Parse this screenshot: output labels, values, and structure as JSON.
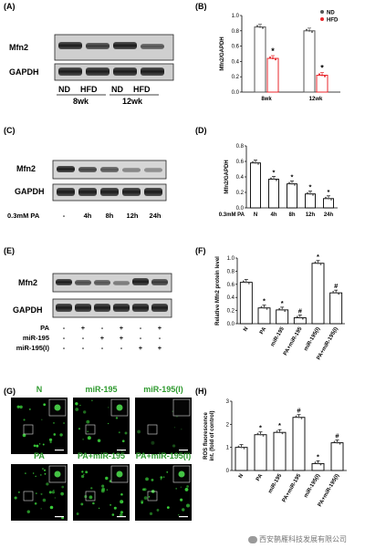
{
  "panels": {
    "A": {
      "letter": "(A)",
      "blot_labels": [
        "Mfn2",
        "GAPDH"
      ],
      "lane_labels": [
        "ND",
        "HFD",
        "ND",
        "HFD"
      ],
      "time_labels": [
        "8wk",
        "12wk"
      ]
    },
    "C": {
      "letter": "(C)",
      "blot_labels": [
        "Mfn2",
        "GAPDH"
      ],
      "treatment": "0.3mM PA",
      "lane_labels": [
        "-",
        "4h",
        "8h",
        "12h",
        "24h"
      ]
    },
    "E": {
      "letter": "(E)",
      "blot_labels": [
        "Mfn2",
        "GAPDH"
      ],
      "rows": [
        {
          "label": "PA",
          "signs": [
            "-",
            "+",
            "-",
            "+",
            "-",
            "+"
          ]
        },
        {
          "label": "miR-195",
          "signs": [
            "-",
            "-",
            "+",
            "+",
            "-",
            "-"
          ]
        },
        {
          "label": "miR-195(I)",
          "signs": [
            "-",
            "-",
            "-",
            "-",
            "+",
            "+"
          ]
        }
      ]
    },
    "G": {
      "letter": "(G)",
      "images": [
        "N",
        "miR-195",
        "miR-195(I)",
        "PA",
        "PA+miR-195",
        "PA+miR-195(I)"
      ]
    }
  },
  "chart_data": [
    {
      "panel": "(B)",
      "type": "bar",
      "ylabel": "Mfn2/GAPDH",
      "ylim": [
        0,
        1.0
      ],
      "yticks": [
        "0.0",
        "0.2",
        "0.4",
        "0.6",
        "0.8",
        "1.0"
      ],
      "categories": [
        "8wk",
        "12wk"
      ],
      "series": [
        {
          "name": "ND",
          "color": "#555555",
          "values": [
            0.85,
            0.8
          ]
        },
        {
          "name": "HFD",
          "color": "#e8262b",
          "values": [
            0.44,
            0.22
          ]
        }
      ],
      "annotations": [
        {
          "series": 1,
          "index": 0,
          "text": "*"
        },
        {
          "series": 1,
          "index": 1,
          "text": "*"
        }
      ],
      "legend": "top-right"
    },
    {
      "panel": "(D)",
      "type": "bar",
      "ylabel": "Mfn2/GAPDH",
      "xprefix": "0.3mM PA",
      "ylim": [
        0,
        0.8
      ],
      "yticks": [
        "0.0",
        "0.2",
        "0.4",
        "0.6",
        "0.8"
      ],
      "categories": [
        "N",
        "4h",
        "8h",
        "12h",
        "24h"
      ],
      "values": [
        0.58,
        0.37,
        0.31,
        0.18,
        0.12
      ],
      "marks": [
        "",
        "*",
        "*",
        "*",
        "*"
      ]
    },
    {
      "panel": "(F)",
      "type": "bar",
      "ylabel": "Relative Mfn2 protein level",
      "ylim": [
        0,
        1.0
      ],
      "yticks": [
        "0.0",
        "0.2",
        "0.4",
        "0.6",
        "0.8",
        "1.0"
      ],
      "categories": [
        "N",
        "PA",
        "miR-195",
        "PA+miR-195",
        "miR-195(I)",
        "PA+miR-195(I)"
      ],
      "values": [
        0.63,
        0.24,
        0.21,
        0.09,
        0.92,
        0.47
      ],
      "marks": [
        "",
        "*",
        "*",
        "#",
        "*",
        "#"
      ]
    },
    {
      "panel": "(H)",
      "type": "bar",
      "ylabel": "ROS fluorescence\nint. (fold of control)",
      "ylim": [
        0,
        3
      ],
      "yticks": [
        "0",
        "1",
        "2",
        "3"
      ],
      "categories": [
        "N",
        "PA",
        "miR-195",
        "PA+miR-195",
        "miR-195(I)",
        "PA+miR-195(I)"
      ],
      "values": [
        1.0,
        1.55,
        1.65,
        2.3,
        0.3,
        1.2
      ],
      "marks": [
        "",
        "*",
        "*",
        "#",
        "*",
        "#"
      ]
    }
  ],
  "watermark": {
    "text": "西安鹊雁科技发展有限公司"
  }
}
